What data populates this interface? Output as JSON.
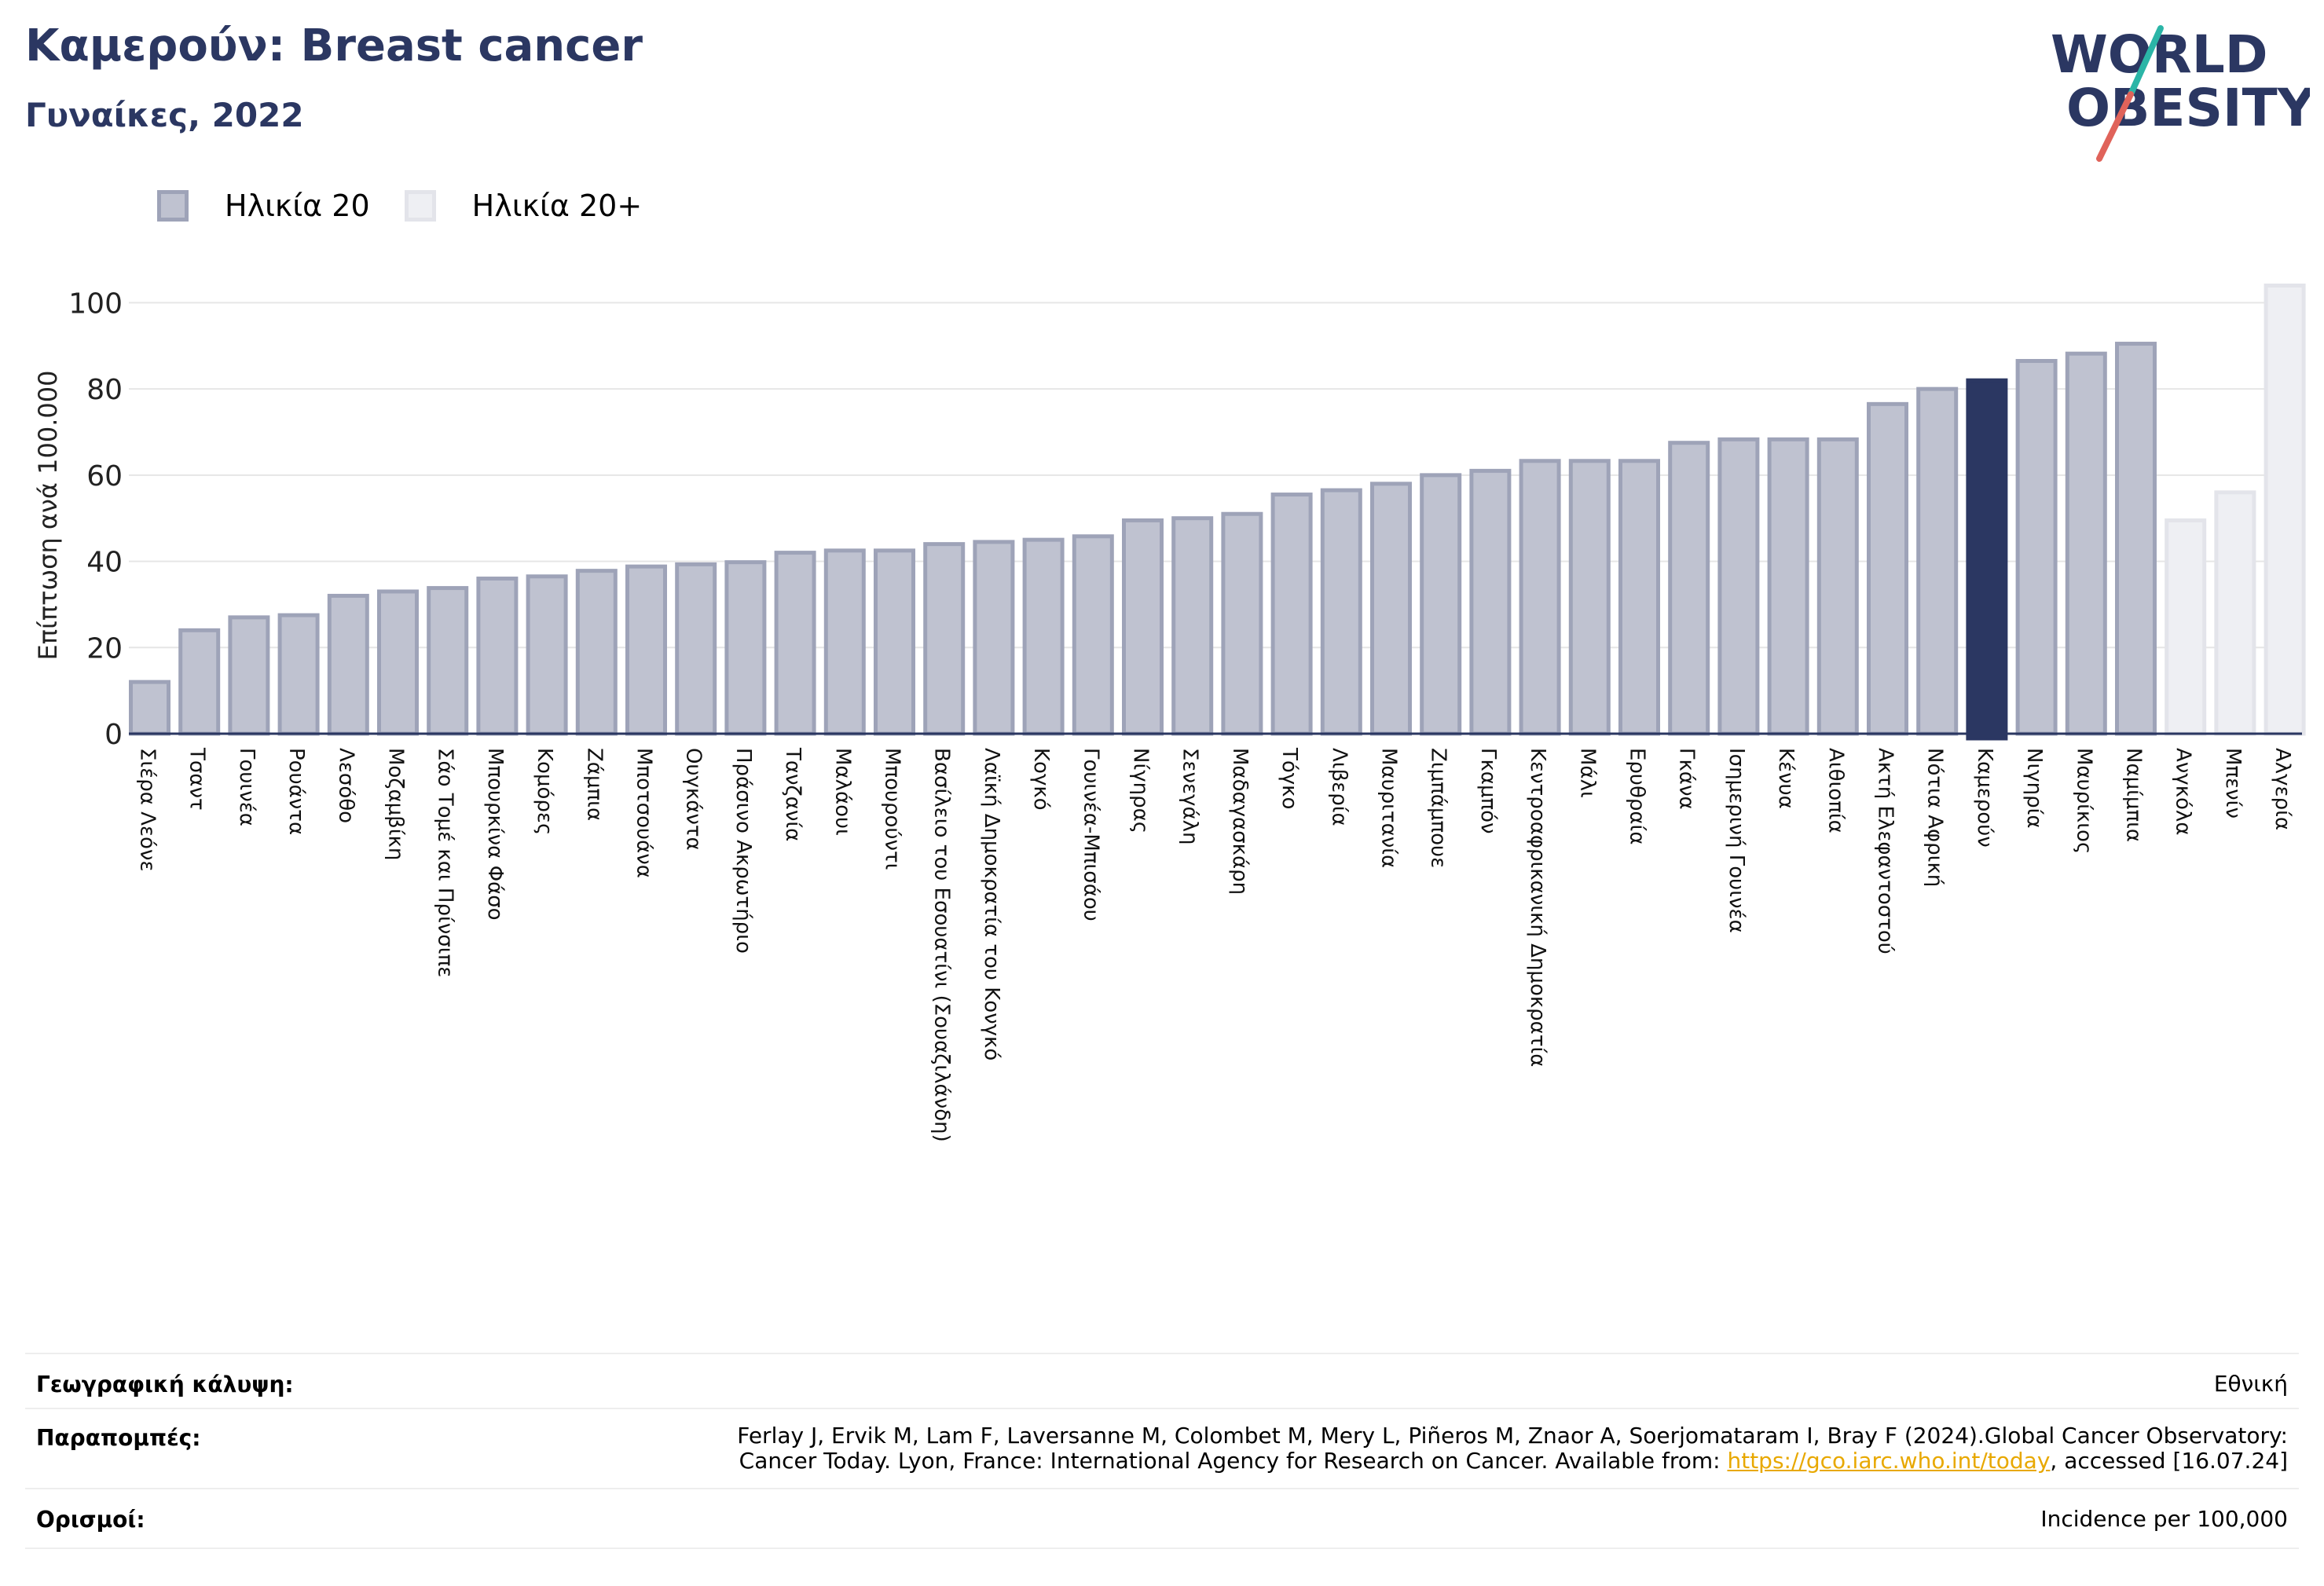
{
  "header": {
    "title": "Καμερούν: Breast cancer",
    "subtitle": "Γυναίκες, 2022"
  },
  "logo": {
    "line1": "WORLD",
    "line2": "OBESITY",
    "icon": "world-obesity-logo"
  },
  "legend": [
    {
      "label": "Ηλικία 20",
      "color": "#bfc2d0",
      "border": "#9ea3b8"
    },
    {
      "label": "Ηλικία 20+",
      "color": "#eeeff3",
      "border": "#e3e4ea"
    }
  ],
  "colors": {
    "highlight": "#2b3762",
    "primary_fill": "#bfc2d0",
    "primary_border": "#9ea3b8",
    "secondary_fill": "#eeeff3",
    "secondary_border": "#e3e4ea",
    "axis": "#2b3762"
  },
  "chart_data": {
    "type": "bar",
    "ylabel": "Επίπτωση ανά 100.000",
    "xlabel": "",
    "ylim": [
      0,
      105
    ],
    "yticks": [
      0,
      20,
      40,
      60,
      80,
      100
    ],
    "grid": true,
    "legend_placement": "top-left",
    "categories": [
      "Σιέρα Λεόνε",
      "Τσαντ",
      "Γουινέα",
      "Ρουάντα",
      "Λεσόθο",
      "Μοζαμβίκη",
      "Σάο Τομέ και Πρίνσιπε",
      "Μπουρκίνα Φάσο",
      "Κομόρες",
      "Ζάμπια",
      "Μποτσουάνα",
      "Ουγκάντα",
      "Πράσινο Ακρωτήριο",
      "Τανζανία",
      "Μαλάουι",
      "Μπουρούντι",
      "Βασίλειο του Εσουατίνι (Σουαζιλάνδη)",
      "Λαϊκή Δημοκρατία του Κονγκό",
      "Κογκό",
      "Γουινέα-Μπισάου",
      "Νίγηρας",
      "Σενεγάλη",
      "Μαδαγασκάρη",
      "Τόγκο",
      "Λιβερία",
      "Μαυριτανία",
      "Ζιμπάμπουε",
      "Γκαμπόν",
      "Κεντροαφρικανική Δημοκρατία",
      "Μάλι",
      "Ερυθραία",
      "Γκάνα",
      "Ισημερινή Γουινέα",
      "Κένυα",
      "Αιθιοπία",
      "Ακτή Ελεφαντοστού",
      "Νότια Αφρική",
      "Καμερούν",
      "Νιγηρία",
      "Μαυρίκιος",
      "Ναμίμπια",
      "Ανγκόλα",
      "Μπενίν",
      "Αλγερία"
    ],
    "values": [
      12,
      24,
      27,
      27.5,
      32,
      33,
      33.8,
      36,
      36.5,
      37.8,
      38.8,
      39.3,
      39.8,
      42,
      42.5,
      42.5,
      44,
      44.5,
      45,
      45.8,
      49.5,
      50,
      51,
      55.5,
      56.5,
      58,
      60,
      61,
      63.3,
      63.3,
      63.3,
      67.5,
      68.3,
      68.3,
      68.3,
      76.5,
      80,
      82,
      86.5,
      88.2,
      90.5,
      49.5,
      56,
      104
    ],
    "series_group": [
      "Ηλικία 20",
      "Ηλικία 20",
      "Ηλικία 20",
      "Ηλικία 20",
      "Ηλικία 20",
      "Ηλικία 20",
      "Ηλικία 20",
      "Ηλικία 20",
      "Ηλικία 20",
      "Ηλικία 20",
      "Ηλικία 20",
      "Ηλικία 20",
      "Ηλικία 20",
      "Ηλικία 20",
      "Ηλικία 20",
      "Ηλικία 20",
      "Ηλικία 20",
      "Ηλικία 20",
      "Ηλικία 20",
      "Ηλικία 20",
      "Ηλικία 20",
      "Ηλικία 20",
      "Ηλικία 20",
      "Ηλικία 20",
      "Ηλικία 20",
      "Ηλικία 20",
      "Ηλικία 20",
      "Ηλικία 20",
      "Ηλικία 20",
      "Ηλικία 20",
      "Ηλικία 20",
      "Ηλικία 20",
      "Ηλικία 20",
      "Ηλικία 20",
      "Ηλικία 20",
      "Ηλικία 20",
      "Ηλικία 20",
      "Ηλικία 20",
      "Ηλικία 20",
      "Ηλικία 20",
      "Ηλικία 20",
      "Ηλικία 20+",
      "Ηλικία 20+",
      "Ηλικία 20+"
    ],
    "highlight": "Καμερούν"
  },
  "meta": {
    "coverage_label": "Γεωγραφική κάλυψη:",
    "coverage_value": "Εθνική",
    "refs_label": "Παραπομπές:",
    "refs_line1": "Ferlay J, Ervik M, Lam F, Laversanne M, Colombet M, Mery L, Piñeros M, Znaor A, Soerjomataram I, Bray F (2024).Global Cancer Observatory:",
    "refs_line2_pre": "Cancer Today. Lyon, France: International Agency for Research on Cancer. Available from: ",
    "refs_link": "https://gco.iarc.who.int/today",
    "refs_line2_post": ", accessed [16.07.24]",
    "defs_label": "Ορισμοί:",
    "defs_value": "Incidence per 100,000"
  }
}
